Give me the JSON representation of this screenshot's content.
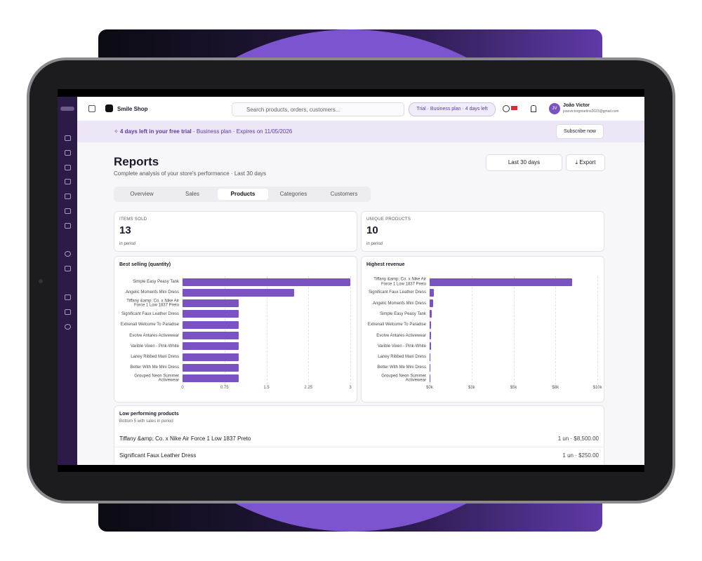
{
  "topbar": {
    "store": "Smile Shop",
    "search_placeholder": "Search products, orders, customers...",
    "trial_badge": "Trial · Business plan · 4 days left",
    "user_name": "João Victor",
    "user_email": "joaovictorgmartins2023@gmail.com",
    "avatar": "JV"
  },
  "banner": {
    "highlight": "4 days left in your free trial",
    "details": "· Business plan · Expires on 11/05/2026",
    "button": "Subscribe now"
  },
  "header": {
    "title": "Reports",
    "subtitle": "Complete analysis of your store's performance · Last 30 days",
    "period": "Last 30 days",
    "export": "Export"
  },
  "tabs": [
    "Overview",
    "Sales",
    "Products",
    "Categories",
    "Customers"
  ],
  "active_tab": 2,
  "kpis": [
    {
      "label": "ITEMS SOLD",
      "value": 13,
      "note": "in period"
    },
    {
      "label": "UNIQUE PRODUCTS",
      "value": 10,
      "note": "in period"
    }
  ],
  "charts": [
    {
      "type": "bar",
      "orientation": "horizontal",
      "title": "Best selling (quantity)",
      "color": "#7b52c1",
      "categories": [
        "Simple Easy Peasy Tank",
        "Angelic Moments Mini Dress",
        "Tiffany &amp; Co. x Nike Air Force 1 Low 1837 Preto",
        "Significant Faux Leather Dress",
        "Extrenall Welcome To Paradise",
        "Evolve Antares Activewear",
        "Varible Vixen - Pink-White",
        "Laney Ribbed Maxi Dress",
        "Better With Me Mini Dress",
        "Grouped Neon Summer Activewear"
      ],
      "values": [
        3,
        2,
        1,
        1,
        1,
        1,
        1,
        1,
        1,
        1
      ],
      "xlim": [
        0,
        3
      ],
      "xticks": [
        0,
        0.75,
        1.5,
        2.25,
        3
      ],
      "grid": true
    },
    {
      "type": "bar",
      "orientation": "horizontal",
      "title": "Highest revenue",
      "color": "#7b52c1",
      "categories": [
        "Tiffany &amp; Co. x Nike Air Force 1 Low 1837 Preto",
        "Significant Faux Leather Dress",
        "Angelic Moments Mini Dress",
        "Simple Easy Peasy Tank",
        "Extrenall Welcome To Paradise",
        "Evolve Antares Activewear",
        "Varible Vixen - Pink-White",
        "Laney Ribbed Maxi Dress",
        "Better With Me Mini Dress",
        "Grouped Neon Summer Activewear"
      ],
      "values": [
        8500,
        250,
        200,
        120,
        100,
        80,
        70,
        60,
        50,
        40
      ],
      "xlim": [
        0,
        10000
      ],
      "xticks": [
        {
          "value": 0,
          "label": "$0k"
        },
        {
          "value": 2500,
          "label": "$3k"
        },
        {
          "value": 5000,
          "label": "$5k"
        },
        {
          "value": 7500,
          "label": "$8k"
        },
        {
          "value": 10000,
          "label": "$10k"
        }
      ],
      "grid": true
    }
  ],
  "low_performing": {
    "title": "Low performing products",
    "subtitle": "Bottom 5 with sales in period",
    "rows": [
      {
        "name": "Tiffany &amp; Co. x Nike Air Force 1 Low 1837 Preto",
        "detail": "1 un · $8,500.00"
      },
      {
        "name": "Significant Faux Leather Dress",
        "detail": "1 un · $250.00"
      }
    ]
  }
}
